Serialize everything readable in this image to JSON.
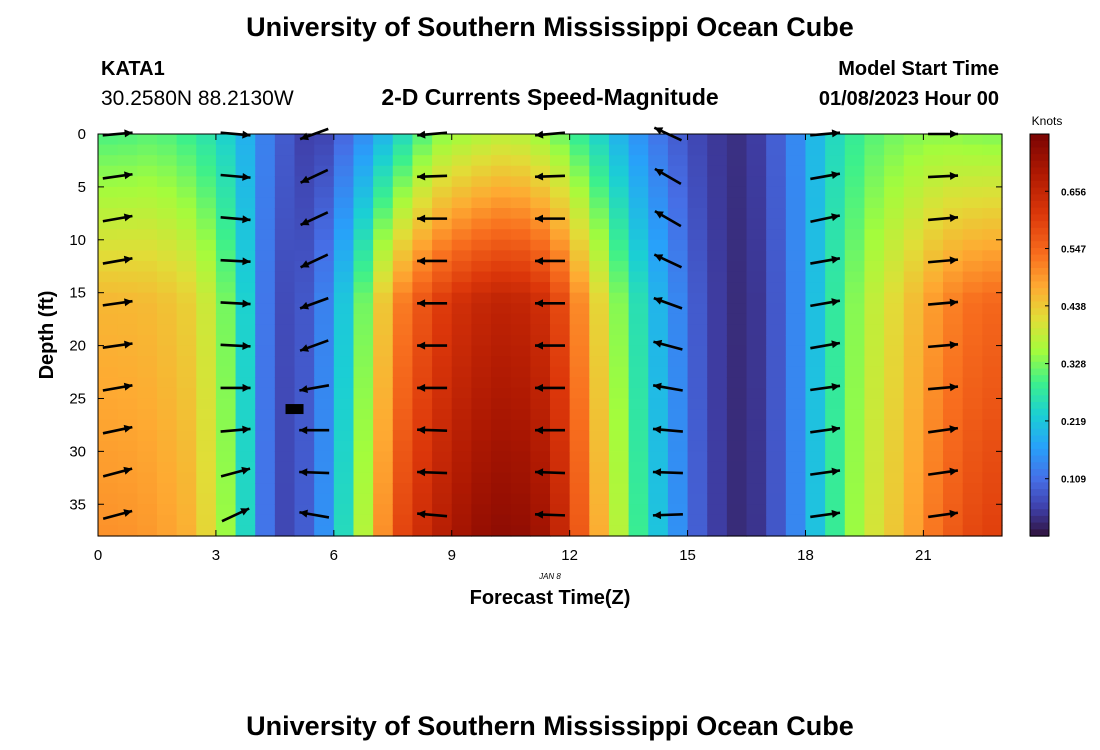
{
  "header": {
    "title": "University of Southern Mississippi Ocean Cube",
    "station_id": "KATA1",
    "station_coords": "30.2580N  88.2130W",
    "plot_title": "2-D Currents Speed-Magnitude",
    "model_start_label": "Model Start Time",
    "model_start_value": "01/08/2023 Hour 00"
  },
  "footer": {
    "title": "University of Southern Mississippi Ocean Cube"
  },
  "colors": {
    "arrow": "#000000",
    "missing_cell": "#000000"
  },
  "chart_data": {
    "type": "heatmap",
    "title": "2-D Currents Speed-Magnitude",
    "xlabel": "Forecast Time(Z)",
    "ylabel": "Depth (ft)",
    "date_label": "JAN 8",
    "xlim": [
      0,
      23
    ],
    "ylim": [
      0,
      38
    ],
    "x_ticks": [
      0,
      3,
      6,
      9,
      12,
      15,
      18,
      21
    ],
    "y_ticks": [
      0,
      5,
      10,
      15,
      20,
      25,
      30,
      35
    ],
    "colorbar": {
      "label": "Knots",
      "range": [
        0,
        0.765
      ],
      "ticks": [
        "0.656",
        "0.547",
        "0.438",
        "0.328",
        "0.219",
        "0.109"
      ],
      "tick_values": [
        0.656,
        0.547,
        0.438,
        0.328,
        0.219,
        0.109
      ]
    },
    "speed_profiles": [
      {
        "hour": 0,
        "surface": 0.3,
        "bottom": 0.5
      },
      {
        "hour": 1,
        "surface": 0.31,
        "bottom": 0.49
      },
      {
        "hour": 2,
        "surface": 0.28,
        "bottom": 0.46
      },
      {
        "hour": 3,
        "surface": 0.22,
        "bottom": 0.31
      },
      {
        "hour": 4,
        "surface": 0.1,
        "bottom": 0.05
      },
      {
        "hour": 5,
        "surface": 0.04,
        "bottom": 0.1
      },
      {
        "hour": 6,
        "surface": 0.12,
        "bottom": 0.3
      },
      {
        "hour": 7,
        "surface": 0.22,
        "bottom": 0.57
      },
      {
        "hour": 8,
        "surface": 0.33,
        "bottom": 0.66
      },
      {
        "hour": 9,
        "surface": 0.36,
        "bottom": 0.72
      },
      {
        "hour": 10,
        "surface": 0.38,
        "bottom": 0.74
      },
      {
        "hour": 11,
        "surface": 0.34,
        "bottom": 0.7
      },
      {
        "hour": 12,
        "surface": 0.26,
        "bottom": 0.52
      },
      {
        "hour": 13,
        "surface": 0.17,
        "bottom": 0.32
      },
      {
        "hour": 14,
        "surface": 0.1,
        "bottom": 0.18
      },
      {
        "hour": 15,
        "surface": 0.05,
        "bottom": 0.06
      },
      {
        "hour": 16,
        "surface": 0.03,
        "bottom": 0.02
      },
      {
        "hour": 17,
        "surface": 0.11,
        "bottom": 0.1
      },
      {
        "hour": 18,
        "surface": 0.23,
        "bottom": 0.25
      },
      {
        "hour": 19,
        "surface": 0.3,
        "bottom": 0.38
      },
      {
        "hour": 20,
        "surface": 0.33,
        "bottom": 0.46
      },
      {
        "hour": 21,
        "surface": 0.34,
        "bottom": 0.55
      },
      {
        "hour": 22,
        "surface": 0.33,
        "bottom": 0.6
      }
    ],
    "vectors": {
      "hours": [
        0.5,
        3.5,
        5.5,
        8.5,
        11.5,
        14.5,
        18.5,
        21.5
      ],
      "depths": [
        0,
        4,
        8,
        12,
        16,
        20,
        24,
        28,
        32,
        36
      ],
      "direction_deg": [
        [
          5,
          8,
          10,
          10,
          8,
          8,
          10,
          12,
          15,
          15
        ],
        [
          -5,
          -5,
          -5,
          -3,
          -3,
          -3,
          0,
          5,
          15,
          25
        ],
        [
          200,
          205,
          205,
          205,
          200,
          200,
          190,
          180,
          178,
          170
        ],
        [
          185,
          182,
          180,
          180,
          180,
          180,
          180,
          178,
          178,
          175
        ],
        [
          185,
          182,
          180,
          180,
          180,
          180,
          180,
          180,
          178,
          178
        ],
        [
          155,
          150,
          150,
          155,
          160,
          165,
          170,
          175,
          178,
          182
        ],
        [
          5,
          10,
          12,
          10,
          10,
          10,
          8,
          8,
          8,
          8
        ],
        [
          0,
          3,
          5,
          5,
          5,
          5,
          5,
          8,
          8,
          8
        ]
      ]
    },
    "missing_cells": [
      {
        "hour": 5,
        "depth": 26
      }
    ]
  }
}
